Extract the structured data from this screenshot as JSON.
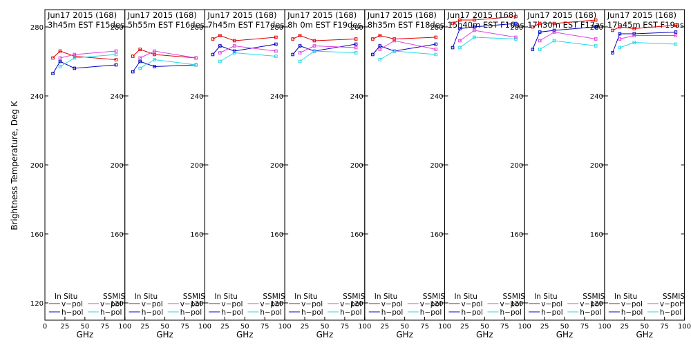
{
  "figure": {
    "ylabel": "Brightness Temperature, Deg K",
    "xlabel": "GHz",
    "yticks": [
      "120",
      "160",
      "200",
      "240",
      "280"
    ],
    "xticks": [
      "0",
      "25",
      "50",
      "75",
      "100"
    ],
    "legend": {
      "in_situ_label": "In Situ",
      "ssmis_label": "SSMIS",
      "vpol_label": "v−pol",
      "hpol_label": "h−pol"
    },
    "colors": {
      "insitu_v": "#e00000",
      "insitu_h": "#0000c0",
      "ssmis_v": "#e040e0",
      "ssmis_h": "#20d8e8"
    }
  },
  "chart_data": [
    {
      "type": "line",
      "title_line1": "Jun17 2015 (168)",
      "title_line2": "3h45m  EST  F15des",
      "xlim": [
        0,
        100
      ],
      "ylim": [
        110,
        290
      ],
      "series": [
        {
          "x": [
            10,
            19,
            37,
            89
          ],
          "y": [
            262,
            266,
            263,
            261
          ]
        },
        {
          "x": [
            10,
            19,
            37,
            89
          ],
          "y": [
            253,
            260,
            256,
            258
          ]
        },
        {
          "x": [
            19,
            37,
            89
          ],
          "y": [
            262,
            264,
            266
          ]
        },
        {
          "x": [
            19,
            37,
            89
          ],
          "y": [
            257,
            262,
            264
          ]
        }
      ]
    },
    {
      "type": "line",
      "title_line1": "Jun17 2015 (168)",
      "title_line2": "5h55m  EST  F16des",
      "xlim": [
        0,
        100
      ],
      "ylim": [
        110,
        290
      ],
      "series": [
        {
          "x": [
            10,
            19,
            37,
            89
          ],
          "y": [
            263,
            267,
            264,
            262
          ]
        },
        {
          "x": [
            10,
            19,
            37,
            89
          ],
          "y": [
            254,
            260,
            257,
            258
          ]
        },
        {
          "x": [
            19,
            37,
            89
          ],
          "y": [
            262,
            266,
            262
          ]
        },
        {
          "x": [
            19,
            37,
            89
          ],
          "y": [
            256,
            261,
            258
          ]
        }
      ]
    },
    {
      "type": "line",
      "title_line1": "Jun17 2015 (168)",
      "title_line2": "7h45m  EST  F17des",
      "xlim": [
        0,
        100
      ],
      "ylim": [
        110,
        290
      ],
      "series": [
        {
          "x": [
            10,
            19,
            37,
            89
          ],
          "y": [
            273,
            275,
            272,
            274
          ]
        },
        {
          "x": [
            10,
            19,
            37,
            89
          ],
          "y": [
            264,
            269,
            266,
            270
          ]
        },
        {
          "x": [
            19,
            37,
            89
          ],
          "y": [
            265,
            269,
            266
          ]
        },
        {
          "x": [
            19,
            37,
            89
          ],
          "y": [
            260,
            265,
            263
          ]
        }
      ]
    },
    {
      "type": "line",
      "title_line1": "Jun17 2015 (168)",
      "title_line2": "8h  0m  EST  F19des",
      "xlim": [
        0,
        100
      ],
      "ylim": [
        110,
        290
      ],
      "series": [
        {
          "x": [
            10,
            19,
            37,
            89
          ],
          "y": [
            273,
            275,
            272,
            273
          ]
        },
        {
          "x": [
            10,
            19,
            37,
            89
          ],
          "y": [
            264,
            269,
            266,
            270
          ]
        },
        {
          "x": [
            19,
            37,
            89
          ],
          "y": [
            265,
            269,
            268
          ]
        },
        {
          "x": [
            19,
            37,
            89
          ],
          "y": [
            260,
            266,
            265
          ]
        }
      ]
    },
    {
      "type": "line",
      "title_line1": "Jun17 2015 (168)",
      "title_line2": "8h35m  EST  F18des",
      "xlim": [
        0,
        100
      ],
      "ylim": [
        110,
        290
      ],
      "series": [
        {
          "x": [
            10,
            19,
            37,
            89
          ],
          "y": [
            273,
            275,
            273,
            274
          ]
        },
        {
          "x": [
            10,
            19,
            37,
            89
          ],
          "y": [
            264,
            269,
            266,
            270
          ]
        },
        {
          "x": [
            19,
            37,
            89
          ],
          "y": [
            267,
            272,
            267
          ]
        },
        {
          "x": [
            19,
            37,
            89
          ],
          "y": [
            261,
            266,
            264
          ]
        }
      ]
    },
    {
      "type": "line",
      "title_line1": "Jun17 2015 (168)",
      "title_line2": "15h40m  EST  F16asc",
      "xlim": [
        0,
        100
      ],
      "ylim": [
        110,
        290
      ],
      "series": [
        {
          "x": [
            10,
            19,
            37,
            89
          ],
          "y": [
            282,
            284,
            284,
            286
          ]
        },
        {
          "x": [
            10,
            19,
            37,
            89
          ],
          "y": [
            268,
            279,
            280,
            282
          ]
        },
        {
          "x": [
            19,
            37,
            89
          ],
          "y": [
            272,
            278,
            274
          ]
        },
        {
          "x": [
            19,
            37,
            89
          ],
          "y": [
            268,
            274,
            273
          ]
        }
      ]
    },
    {
      "type": "line",
      "title_line1": "Jun17 2015 (168)",
      "title_line2": "17h30m  EST  F17asc",
      "xlim": [
        0,
        100
      ],
      "ylim": [
        110,
        290
      ],
      "series": [
        {
          "x": [
            10,
            19,
            37,
            89
          ],
          "y": [
            280,
            282,
            282,
            284
          ]
        },
        {
          "x": [
            10,
            19,
            37,
            89
          ],
          "y": [
            267,
            277,
            278,
            280
          ]
        },
        {
          "x": [
            19,
            37,
            89
          ],
          "y": [
            272,
            277,
            273
          ]
        },
        {
          "x": [
            19,
            37,
            89
          ],
          "y": [
            267,
            272,
            269
          ]
        }
      ]
    },
    {
      "type": "line",
      "title_line1": "Jun17 2015 (168)",
      "title_line2": "17h45m  EST  F19asc",
      "xlim": [
        0,
        100
      ],
      "ylim": [
        110,
        290
      ],
      "series": [
        {
          "x": [
            10,
            19,
            37,
            89
          ],
          "y": [
            278,
            280,
            279,
            281
          ]
        },
        {
          "x": [
            10,
            19,
            37,
            89
          ],
          "y": [
            265,
            276,
            276,
            277
          ]
        },
        {
          "x": [
            19,
            37,
            89
          ],
          "y": [
            273,
            275,
            275
          ]
        },
        {
          "x": [
            19,
            37,
            89
          ],
          "y": [
            268,
            271,
            270
          ]
        }
      ]
    }
  ]
}
